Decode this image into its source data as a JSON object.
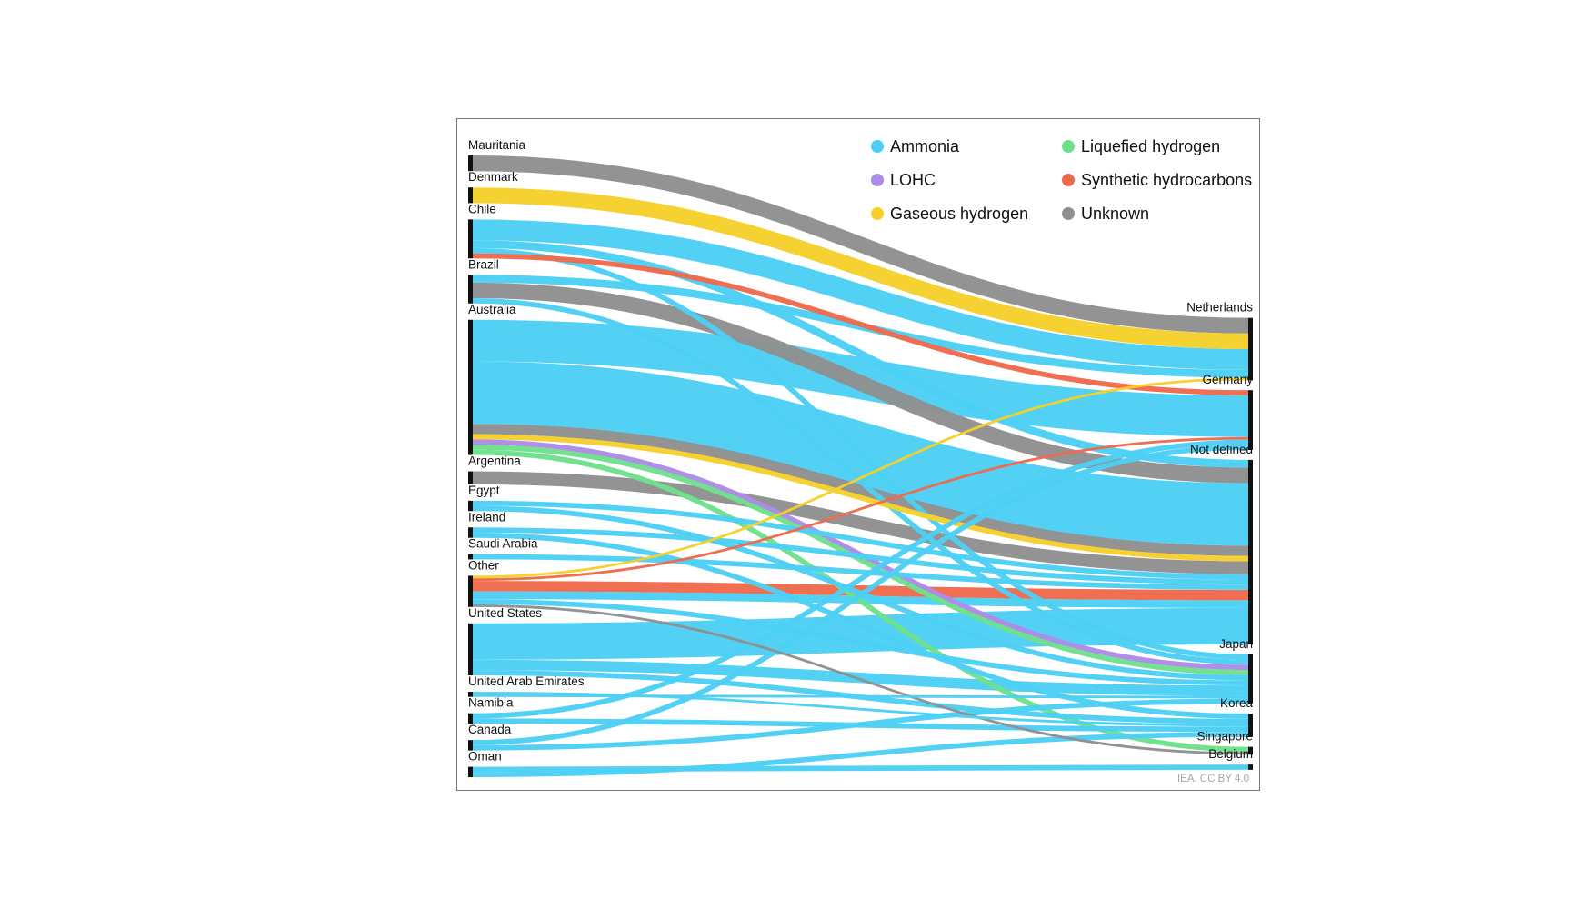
{
  "chart_data": {
    "type": "sankey",
    "title": "",
    "credit": "IEA. CC BY 4.0",
    "colors": {
      "Ammonia": "#4dcff5",
      "Liquefied hydrogen": "#6ee08c",
      "LOHC": "#ad8be8",
      "Synthetic hydrocarbons": "#ef6a4c",
      "Gaseous hydrogen": "#f6cf2b",
      "Unknown": "#8f8f8f"
    },
    "legend": [
      {
        "name": "Ammonia",
        "color": "#4dcff5"
      },
      {
        "name": "Liquefied hydrogen",
        "color": "#6ee08c"
      },
      {
        "name": "LOHC",
        "color": "#ad8be8"
      },
      {
        "name": "Synthetic hydrocarbons",
        "color": "#ef6a4c"
      },
      {
        "name": "Gaseous hydrogen",
        "color": "#f6cf2b"
      },
      {
        "name": "Unknown",
        "color": "#8f8f8f"
      }
    ],
    "sources": [
      "Mauritania",
      "Denmark",
      "Chile",
      "Brazil",
      "Australia",
      "Argentina",
      "Egypt",
      "Ireland",
      "Saudi Arabia",
      "Other",
      "United States",
      "United Arab Emirates",
      "Namibia",
      "Canada",
      "Oman"
    ],
    "targets": [
      "Netherlands",
      "Germany",
      "Not defined",
      "Japan",
      "Korea",
      "Singapore",
      "Belgium"
    ],
    "flows": [
      {
        "source": "Mauritania",
        "target": "Netherlands",
        "carrier": "Unknown",
        "value": 3
      },
      {
        "source": "Denmark",
        "target": "Netherlands",
        "carrier": "Gaseous hydrogen",
        "value": 3
      },
      {
        "source": "Chile",
        "target": "Netherlands",
        "carrier": "Ammonia",
        "value": 4
      },
      {
        "source": "Chile",
        "target": "Not defined",
        "carrier": "Ammonia",
        "value": 1.5
      },
      {
        "source": "Chile",
        "target": "Japan",
        "carrier": "Ammonia",
        "value": 1
      },
      {
        "source": "Chile",
        "target": "Germany",
        "carrier": "Synthetic hydrocarbons",
        "value": 1
      },
      {
        "source": "Brazil",
        "target": "Netherlands",
        "carrier": "Ammonia",
        "value": 1.5
      },
      {
        "source": "Brazil",
        "target": "Not defined",
        "carrier": "Unknown",
        "value": 3
      },
      {
        "source": "Brazil",
        "target": "Japan",
        "carrier": "Ammonia",
        "value": 1
      },
      {
        "source": "Australia",
        "target": "Germany",
        "carrier": "Ammonia",
        "value": 8
      },
      {
        "source": "Australia",
        "target": "Not defined",
        "carrier": "Ammonia",
        "value": 12
      },
      {
        "source": "Australia",
        "target": "Not defined",
        "carrier": "Unknown",
        "value": 2
      },
      {
        "source": "Australia",
        "target": "Not defined",
        "carrier": "Gaseous hydrogen",
        "value": 1
      },
      {
        "source": "Australia",
        "target": "Japan",
        "carrier": "LOHC",
        "value": 1
      },
      {
        "source": "Australia",
        "target": "Japan",
        "carrier": "Liquefied hydrogen",
        "value": 1
      },
      {
        "source": "Australia",
        "target": "Singapore",
        "carrier": "Liquefied hydrogen",
        "value": 1
      },
      {
        "source": "Argentina",
        "target": "Not defined",
        "carrier": "Unknown",
        "value": 2.5
      },
      {
        "source": "Egypt",
        "target": "Not defined",
        "carrier": "Ammonia",
        "value": 1
      },
      {
        "source": "Egypt",
        "target": "Japan",
        "carrier": "Ammonia",
        "value": 1
      },
      {
        "source": "Ireland",
        "target": "Not defined",
        "carrier": "Ammonia",
        "value": 1
      },
      {
        "source": "Ireland",
        "target": "Korea",
        "carrier": "Ammonia",
        "value": 1
      },
      {
        "source": "Saudi Arabia",
        "target": "Not defined",
        "carrier": "Ammonia",
        "value": 1
      },
      {
        "source": "Other",
        "target": "Netherlands",
        "carrier": "Gaseous hydrogen",
        "value": 0.5
      },
      {
        "source": "Other",
        "target": "Germany",
        "carrier": "Synthetic hydrocarbons",
        "value": 0.5
      },
      {
        "source": "Other",
        "target": "Not defined",
        "carrier": "Synthetic hydrocarbons",
        "value": 2
      },
      {
        "source": "Other",
        "target": "Not defined",
        "carrier": "Ammonia",
        "value": 1.5
      },
      {
        "source": "Other",
        "target": "Japan",
        "carrier": "Ammonia",
        "value": 1
      },
      {
        "source": "Other",
        "target": "Singapore",
        "carrier": "Unknown",
        "value": 0.5
      },
      {
        "source": "United States",
        "target": "Not defined",
        "carrier": "Ammonia",
        "value": 7
      },
      {
        "source": "United States",
        "target": "Japan",
        "carrier": "Ammonia",
        "value": 2
      },
      {
        "source": "United States",
        "target": "Korea",
        "carrier": "Ammonia",
        "value": 1
      },
      {
        "source": "United Arab Emirates",
        "target": "Korea",
        "carrier": "Ammonia",
        "value": 0.5
      },
      {
        "source": "United Arab Emirates",
        "target": "Japan",
        "carrier": "Ammonia",
        "value": 0.5
      },
      {
        "source": "Namibia",
        "target": "Germany",
        "carrier": "Ammonia",
        "value": 1
      },
      {
        "source": "Namibia",
        "target": "Korea",
        "carrier": "Ammonia",
        "value": 1
      },
      {
        "source": "Canada",
        "target": "Germany",
        "carrier": "Ammonia",
        "value": 1
      },
      {
        "source": "Canada",
        "target": "Japan",
        "carrier": "Ammonia",
        "value": 1
      },
      {
        "source": "Oman",
        "target": "Belgium",
        "carrier": "Ammonia",
        "value": 1
      },
      {
        "source": "Oman",
        "target": "Korea",
        "carrier": "Ammonia",
        "value": 1
      }
    ]
  }
}
